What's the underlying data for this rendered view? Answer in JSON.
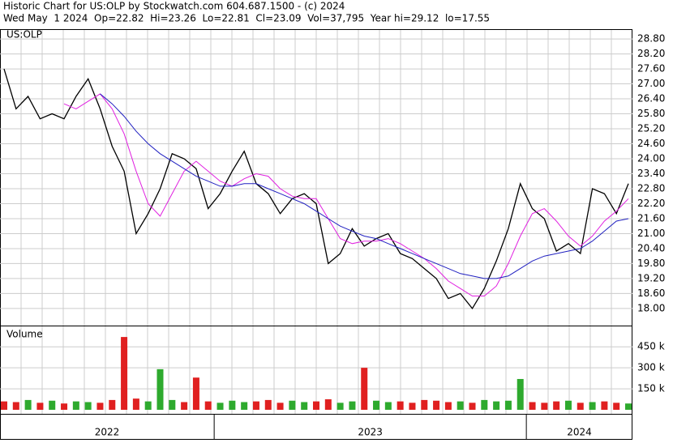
{
  "header": {
    "line1": "Historic Chart for US:OLP by Stockwatch.com 604.687.1500 - (c) 2024",
    "line2": "Wed May  1 2024  Op=22.82  Hi=23.26  Lo=22.81  Cl=23.09  Vol=37,795  Year hi=29.12  lo=17.55"
  },
  "chart_data": [
    {
      "type": "line",
      "title": "US:OLP",
      "x": [
        "2022",
        "2022",
        "2022",
        "2022",
        "2022",
        "2022",
        "2022",
        "2022",
        "2022",
        "2022",
        "2022",
        "2022",
        "2022",
        "2022",
        "2022",
        "2022",
        "2022",
        "2022",
        "2023",
        "2023",
        "2023",
        "2023",
        "2023",
        "2023",
        "2023",
        "2023",
        "2023",
        "2023",
        "2023",
        "2023",
        "2023",
        "2023",
        "2023",
        "2023",
        "2023",
        "2023",
        "2023",
        "2023",
        "2023",
        "2023",
        "2023",
        "2023",
        "2023",
        "2023",
        "2024",
        "2024",
        "2024",
        "2024",
        "2024",
        "2024",
        "2024",
        "2024",
        "2024"
      ],
      "ylim": [
        17.38,
        29.16
      ],
      "yticks": [
        {
          "value": 18,
          "label": "18.00"
        },
        {
          "value": 18.6,
          "label": "18.60"
        },
        {
          "value": 19.2,
          "label": "19.20"
        },
        {
          "value": 19.8,
          "label": "19.80"
        },
        {
          "value": 20.4,
          "label": "20.40"
        },
        {
          "value": 21,
          "label": "21.00"
        },
        {
          "value": 21.6,
          "label": "21.60"
        },
        {
          "value": 22.2,
          "label": "22.20"
        },
        {
          "value": 22.8,
          "label": "22.80"
        },
        {
          "value": 23.4,
          "label": "23.40"
        },
        {
          "value": 24,
          "label": "24.00"
        },
        {
          "value": 24.6,
          "label": "24.60"
        },
        {
          "value": 25.2,
          "label": "25.20"
        },
        {
          "value": 25.8,
          "label": "25.80"
        },
        {
          "value": 26.4,
          "label": "26.40"
        },
        {
          "value": 27,
          "label": "27.00"
        },
        {
          "value": 27.6,
          "label": "27.60"
        },
        {
          "value": 28.2,
          "label": "28.20"
        },
        {
          "value": 28.8,
          "label": "28.80"
        }
      ],
      "grid": true,
      "series": [
        {
          "color": "#000000",
          "values": [
            27.6,
            26.0,
            26.5,
            25.6,
            25.8,
            25.6,
            26.5,
            27.2,
            26.0,
            24.5,
            23.5,
            21.0,
            21.8,
            22.8,
            24.2,
            24.0,
            23.6,
            22.0,
            22.6,
            23.5,
            24.3,
            23.0,
            22.6,
            21.8,
            22.4,
            22.6,
            22.2,
            19.8,
            20.2,
            21.2,
            20.5,
            20.8,
            21.0,
            20.2,
            20.0,
            19.6,
            19.2,
            18.4,
            18.6,
            18.0,
            18.8,
            19.9,
            21.2,
            23.0,
            22.0,
            21.6,
            20.3,
            20.6,
            20.2,
            22.8,
            22.6,
            21.8,
            23.0
          ]
        },
        {
          "color": "#e020e0",
          "values": [
            null,
            null,
            null,
            null,
            null,
            26.2,
            26.0,
            26.3,
            26.6,
            26.0,
            25.0,
            23.5,
            22.2,
            21.7,
            22.6,
            23.5,
            23.9,
            23.5,
            23.1,
            22.9,
            23.2,
            23.4,
            23.3,
            22.8,
            22.5,
            22.4,
            22.4,
            21.6,
            20.8,
            20.6,
            20.7,
            20.7,
            20.8,
            20.6,
            20.3,
            20.0,
            19.6,
            19.1,
            18.8,
            18.5,
            18.5,
            18.9,
            19.8,
            20.9,
            21.8,
            22.0,
            21.5,
            20.9,
            20.5,
            20.9,
            21.5,
            21.9,
            22.4
          ]
        },
        {
          "color": "#2020c0",
          "values": [
            null,
            null,
            null,
            null,
            null,
            null,
            null,
            null,
            26.6,
            26.2,
            25.7,
            25.1,
            24.6,
            24.2,
            23.9,
            23.6,
            23.3,
            23.1,
            22.9,
            22.9,
            23.0,
            23.0,
            22.8,
            22.6,
            22.4,
            22.2,
            21.9,
            21.6,
            21.3,
            21.1,
            20.9,
            20.8,
            20.6,
            20.4,
            20.2,
            20.0,
            19.8,
            19.6,
            19.4,
            19.3,
            19.2,
            19.2,
            19.3,
            19.6,
            19.9,
            20.1,
            20.2,
            20.3,
            20.4,
            20.7,
            21.1,
            21.5,
            21.6
          ]
        }
      ]
    },
    {
      "type": "bar",
      "title": "Volume",
      "ylim": [
        0,
        590000
      ],
      "yticks": [
        {
          "value": 150000,
          "label": "150 k"
        },
        {
          "value": 300000,
          "label": "300 k"
        },
        {
          "value": 450000,
          "label": "450 k"
        }
      ],
      "series": [
        {
          "values": [
            60000,
            55000,
            70000,
            50000,
            65000,
            45000,
            60000,
            55000,
            50000,
            70000,
            520000,
            80000,
            60000,
            290000,
            70000,
            55000,
            230000,
            60000,
            50000,
            65000,
            55000,
            60000,
            70000,
            50000,
            65000,
            55000,
            60000,
            75000,
            50000,
            60000,
            300000,
            65000,
            55000,
            60000,
            50000,
            70000,
            65000,
            55000,
            60000,
            50000,
            70000,
            60000,
            65000,
            220000,
            55000,
            50000,
            60000,
            65000,
            50000,
            55000,
            60000,
            50000,
            45000
          ]
        }
      ]
    }
  ]
}
